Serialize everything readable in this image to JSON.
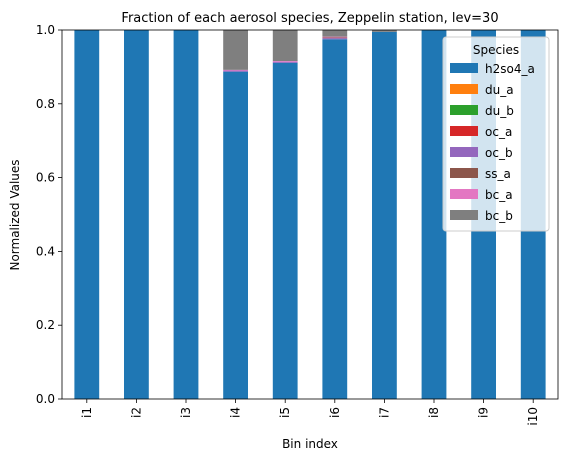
{
  "chart_data": {
    "type": "bar",
    "stacked": true,
    "title": "Fraction of each aerosol species, Zeppelin station, lev=30",
    "xlabel": "Bin index",
    "ylabel": "Normalized Values",
    "ylim": [
      0,
      1.0
    ],
    "yticks": [
      "0.0",
      "0.2",
      "0.4",
      "0.6",
      "0.8",
      "1.0"
    ],
    "categories": [
      "i1",
      "i2",
      "i3",
      "i4",
      "i5",
      "i6",
      "i7",
      "i8",
      "i9",
      "i10"
    ],
    "legend_title": "Species",
    "legend_position": "upper right",
    "series": [
      {
        "name": "h2so4_a",
        "color": "#1f77b4",
        "values": [
          1.0,
          1.0,
          1.0,
          0.887,
          0.911,
          0.975,
          0.995,
          1.0,
          1.0,
          1.0
        ]
      },
      {
        "name": "du_a",
        "color": "#ff7f0e",
        "values": [
          0,
          0,
          0,
          0,
          0,
          0,
          0,
          0,
          0,
          0
        ]
      },
      {
        "name": "du_b",
        "color": "#2ca02c",
        "values": [
          0,
          0,
          0,
          0,
          0,
          0,
          0,
          0,
          0,
          0
        ]
      },
      {
        "name": "oc_a",
        "color": "#d62728",
        "values": [
          0,
          0,
          0,
          0,
          0,
          0,
          0,
          0,
          0,
          0
        ]
      },
      {
        "name": "oc_b",
        "color": "#9467bd",
        "values": [
          0,
          0,
          0,
          0.003,
          0.003,
          0.003,
          0,
          0,
          0,
          0
        ]
      },
      {
        "name": "ss_a",
        "color": "#8c564b",
        "values": [
          0,
          0,
          0,
          0,
          0,
          0.002,
          0,
          0,
          0,
          0
        ]
      },
      {
        "name": "bc_a",
        "color": "#e377c2",
        "values": [
          0,
          0,
          0,
          0.002,
          0.002,
          0.002,
          0,
          0,
          0,
          0
        ]
      },
      {
        "name": "bc_b",
        "color": "#7f7f7f",
        "values": [
          0,
          0,
          0,
          0.108,
          0.084,
          0.018,
          0.005,
          0,
          0,
          0
        ]
      }
    ]
  }
}
